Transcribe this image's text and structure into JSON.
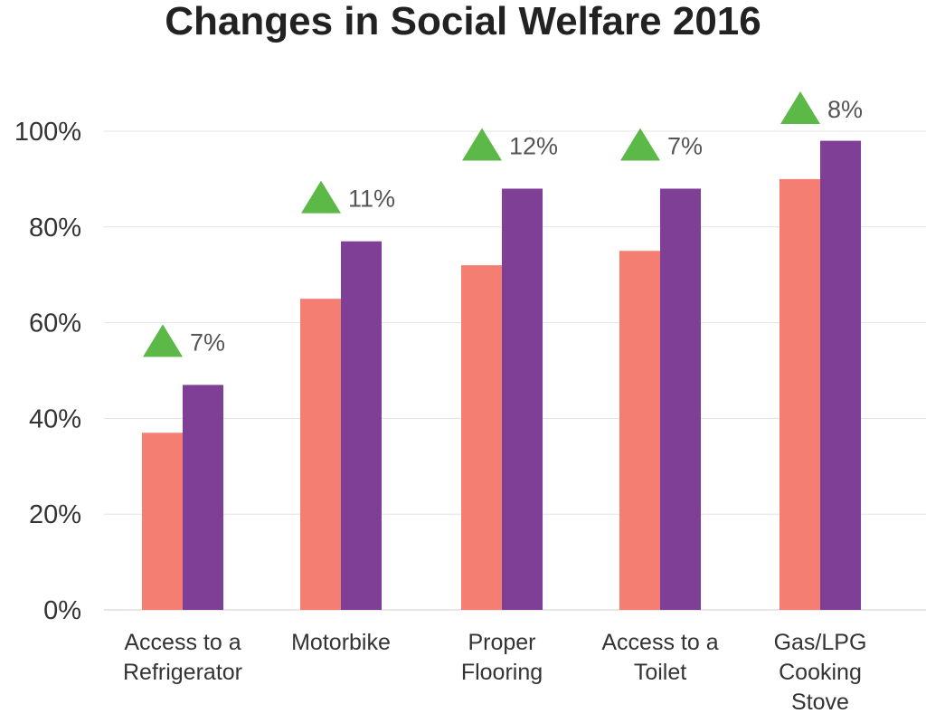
{
  "chart_data": {
    "type": "bar",
    "title": "Changes in Social Welfare 2016",
    "xlabel": "",
    "ylabel": "",
    "ylim": [
      0,
      100
    ],
    "yticks": [
      "0%",
      "20%",
      "40%",
      "60%",
      "80%",
      "100%"
    ],
    "grid": true,
    "categories": [
      [
        "Access to a",
        "Refrigerator"
      ],
      [
        "Motorbike"
      ],
      [
        "Proper",
        "Flooring"
      ],
      [
        "Access to a",
        "Toilet"
      ],
      [
        "Gas/LPG",
        "Cooking",
        "Stove"
      ]
    ],
    "series": [
      {
        "values": [
          37,
          65,
          72,
          75,
          90
        ],
        "color": "#f47e72"
      },
      {
        "values": [
          47,
          77,
          88,
          88,
          98
        ],
        "color": "#7f3f97"
      }
    ],
    "annotations": [
      "7%",
      "11%",
      "12%",
      "7%",
      "8%"
    ],
    "annotation_icon": "triangle-up-icon",
    "annotation_color": "#5cb947"
  }
}
